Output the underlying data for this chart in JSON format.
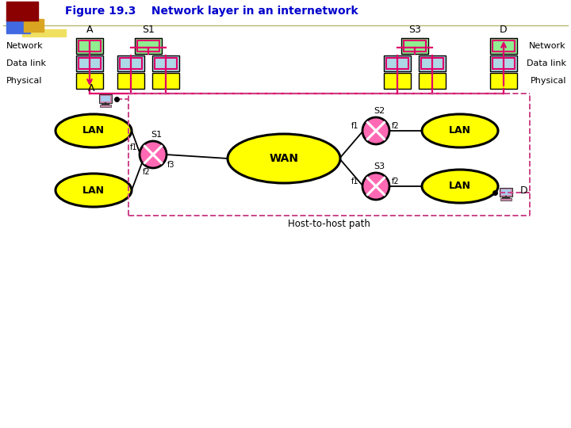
{
  "title": "Figure 19.3    Network layer in an internetwork",
  "title_color": "#0000CC",
  "bg_color": "#FFFFFF",
  "node_colors": {
    "network": "#90EE90",
    "datalink": "#ADD8E6",
    "physical": "#FFFF00",
    "lan": "#FFFF00",
    "wan": "#FFFF00",
    "router": "#FF69B4"
  },
  "pink_line": "#E0006A",
  "dashed_pink": "#CC4488",
  "black": "#000000",
  "labels": {
    "A": "A",
    "S1": "S1",
    "S2": "S2",
    "S3": "S3",
    "D": "D",
    "Network": "Network",
    "Data_link": "Data link",
    "Physical": "Physical",
    "LAN": "LAN",
    "WAN": "WAN",
    "host_path": "Host-to-host path"
  }
}
